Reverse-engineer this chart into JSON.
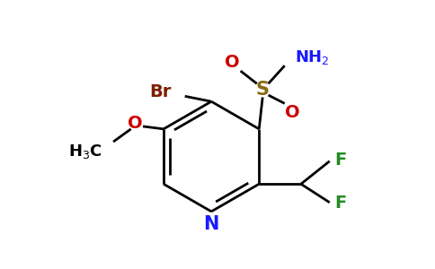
{
  "bg_color": "#ffffff",
  "ring_color": "#000000",
  "N_color": "#1a1aff",
  "O_color": "#cc0000",
  "Br_color": "#7b2000",
  "F_color": "#228b22",
  "S_color": "#8b6914",
  "NH2_color": "#1a1aff",
  "lw": 2.0,
  "figsize": [
    4.84,
    3.0
  ],
  "dpi": 100,
  "xlim": [
    0,
    9.68
  ],
  "ylim": [
    0,
    6.0
  ]
}
